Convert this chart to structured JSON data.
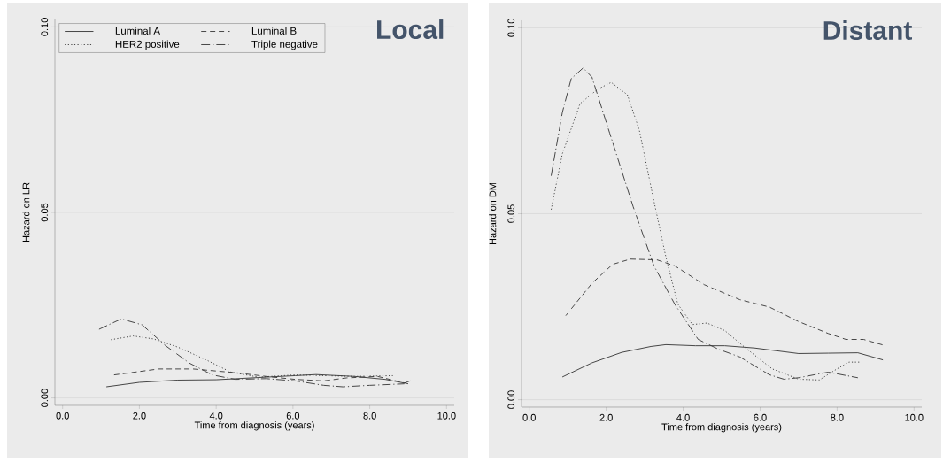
{
  "chart_data": [
    {
      "type": "line",
      "title": "Local",
      "xlabel": "Time from diagnosis (years)",
      "ylabel": "Hazard on LR",
      "xlim": [
        -0.2,
        10.2
      ],
      "ylim": [
        -0.002,
        0.102
      ],
      "xticks": [
        {
          "value": 0,
          "label": "0.0"
        },
        {
          "value": 2,
          "label": "2.0"
        },
        {
          "value": 4,
          "label": "4.0"
        },
        {
          "value": 6,
          "label": "6.0"
        },
        {
          "value": 8,
          "label": "8.0"
        },
        {
          "value": 10,
          "label": "10.0"
        }
      ],
      "yticks": [
        {
          "value": 0,
          "label": "0.00"
        },
        {
          "value": 0.05,
          "label": "0.05"
        },
        {
          "value": 0.1,
          "label": "0.10"
        }
      ],
      "grid": "y",
      "legend": "top left",
      "series": [
        {
          "name": "Luminal A",
          "color": "#333333",
          "line_style": "solid",
          "x": [
            1.14,
            2.0,
            3.0,
            4.0,
            5.3,
            6.06,
            6.6,
            7.6,
            8.4,
            8.9,
            9.05
          ],
          "values": [
            0.003,
            0.0042,
            0.0048,
            0.0049,
            0.0056,
            0.006,
            0.0063,
            0.0058,
            0.005,
            0.004,
            0.0046
          ]
        },
        {
          "name": "Luminal B",
          "color": "#333333",
          "line_style": "dashed",
          "x": [
            1.34,
            2.5,
            3.4,
            4.5,
            5.3,
            6.06,
            6.8,
            7.4,
            8.2,
            9.0
          ],
          "values": [
            0.0062,
            0.0078,
            0.0078,
            0.0068,
            0.0058,
            0.005,
            0.0046,
            0.0054,
            0.0058,
            0.0038
          ]
        },
        {
          "name": "HER2 positive",
          "color": "#333333",
          "line_style": "dotted",
          "x": [
            1.26,
            1.84,
            2.37,
            3.0,
            3.75,
            4.37,
            5.1,
            6.06,
            6.8,
            7.6,
            8.6
          ],
          "values": [
            0.0157,
            0.0167,
            0.0159,
            0.0137,
            0.0102,
            0.007,
            0.0056,
            0.0062,
            0.006,
            0.0058,
            0.006
          ]
        },
        {
          "name": "Triple negative",
          "color": "#333333",
          "line_style": "dashdot",
          "x": [
            0.95,
            1.53,
            2.07,
            2.68,
            3.3,
            3.9,
            4.5,
            5.3,
            6.06,
            6.8,
            7.3,
            8.0,
            8.9
          ],
          "values": [
            0.0185,
            0.0213,
            0.0197,
            0.0141,
            0.0094,
            0.0062,
            0.005,
            0.0052,
            0.0046,
            0.0034,
            0.003,
            0.0034,
            0.0038
          ]
        }
      ]
    },
    {
      "type": "line",
      "title": "Distant",
      "xlabel": "Time from diagnosis (years)",
      "ylabel": "Hazard on DM",
      "xlim": [
        -0.2,
        10.2
      ],
      "ylim": [
        -0.002,
        0.102
      ],
      "xticks": [
        {
          "value": 0,
          "label": "0.0"
        },
        {
          "value": 2,
          "label": "2.0"
        },
        {
          "value": 4,
          "label": "4.0"
        },
        {
          "value": 6,
          "label": "6.0"
        },
        {
          "value": 8,
          "label": "8.0"
        },
        {
          "value": 10,
          "label": "10.0"
        }
      ],
      "yticks": [
        {
          "value": 0,
          "label": "0.00"
        },
        {
          "value": 0.05,
          "label": "0.05"
        },
        {
          "value": 0.1,
          "label": "0.10"
        }
      ],
      "grid": "y",
      "series": [
        {
          "color": "#333333",
          "line_style": "solid",
          "x": [
            0.86,
            1.63,
            2.4,
            3.16,
            3.55,
            4.32,
            5.08,
            5.85,
            7.0,
            7.77,
            8.54,
            9.19
          ],
          "values": [
            0.0061,
            0.0099,
            0.0127,
            0.0143,
            0.0148,
            0.0145,
            0.0145,
            0.0139,
            0.0124,
            0.0125,
            0.0126,
            0.0107
          ]
        },
        {
          "color": "#333333",
          "line_style": "dashed",
          "x": [
            0.95,
            1.63,
            2.17,
            2.63,
            3.32,
            3.78,
            4.55,
            5.47,
            6.24,
            7.0,
            7.77,
            8.23,
            8.69,
            9.23
          ],
          "values": [
            0.0226,
            0.0313,
            0.0364,
            0.0378,
            0.0376,
            0.036,
            0.0309,
            0.0269,
            0.0249,
            0.021,
            0.0178,
            0.0162,
            0.0162,
            0.0146
          ]
        },
        {
          "color": "#333333",
          "line_style": "dotted",
          "x": [
            0.57,
            0.86,
            1.32,
            1.78,
            2.13,
            2.55,
            2.86,
            3.24,
            3.55,
            3.86,
            4.24,
            4.62,
            5.08,
            5.62,
            6.31,
            7.0,
            7.54,
            8.0,
            8.31,
            8.58
          ],
          "values": [
            0.0511,
            0.0661,
            0.0796,
            0.0835,
            0.0853,
            0.082,
            0.0725,
            0.0534,
            0.0384,
            0.0257,
            0.0202,
            0.0206,
            0.0186,
            0.0139,
            0.0083,
            0.0055,
            0.0053,
            0.0083,
            0.0101,
            0.0101
          ]
        },
        {
          "color": "#333333",
          "line_style": "dashdot",
          "x": [
            0.57,
            0.86,
            1.09,
            1.4,
            1.63,
            2.09,
            2.7,
            3.24,
            3.78,
            4.39,
            4.93,
            5.47,
            6.24,
            6.62,
            7.0,
            7.77,
            8.54
          ],
          "values": [
            0.0602,
            0.0772,
            0.0863,
            0.0892,
            0.0867,
            0.0717,
            0.0519,
            0.036,
            0.0257,
            0.0162,
            0.0135,
            0.0115,
            0.0067,
            0.0055,
            0.0059,
            0.0074,
            0.0059
          ]
        }
      ]
    }
  ]
}
